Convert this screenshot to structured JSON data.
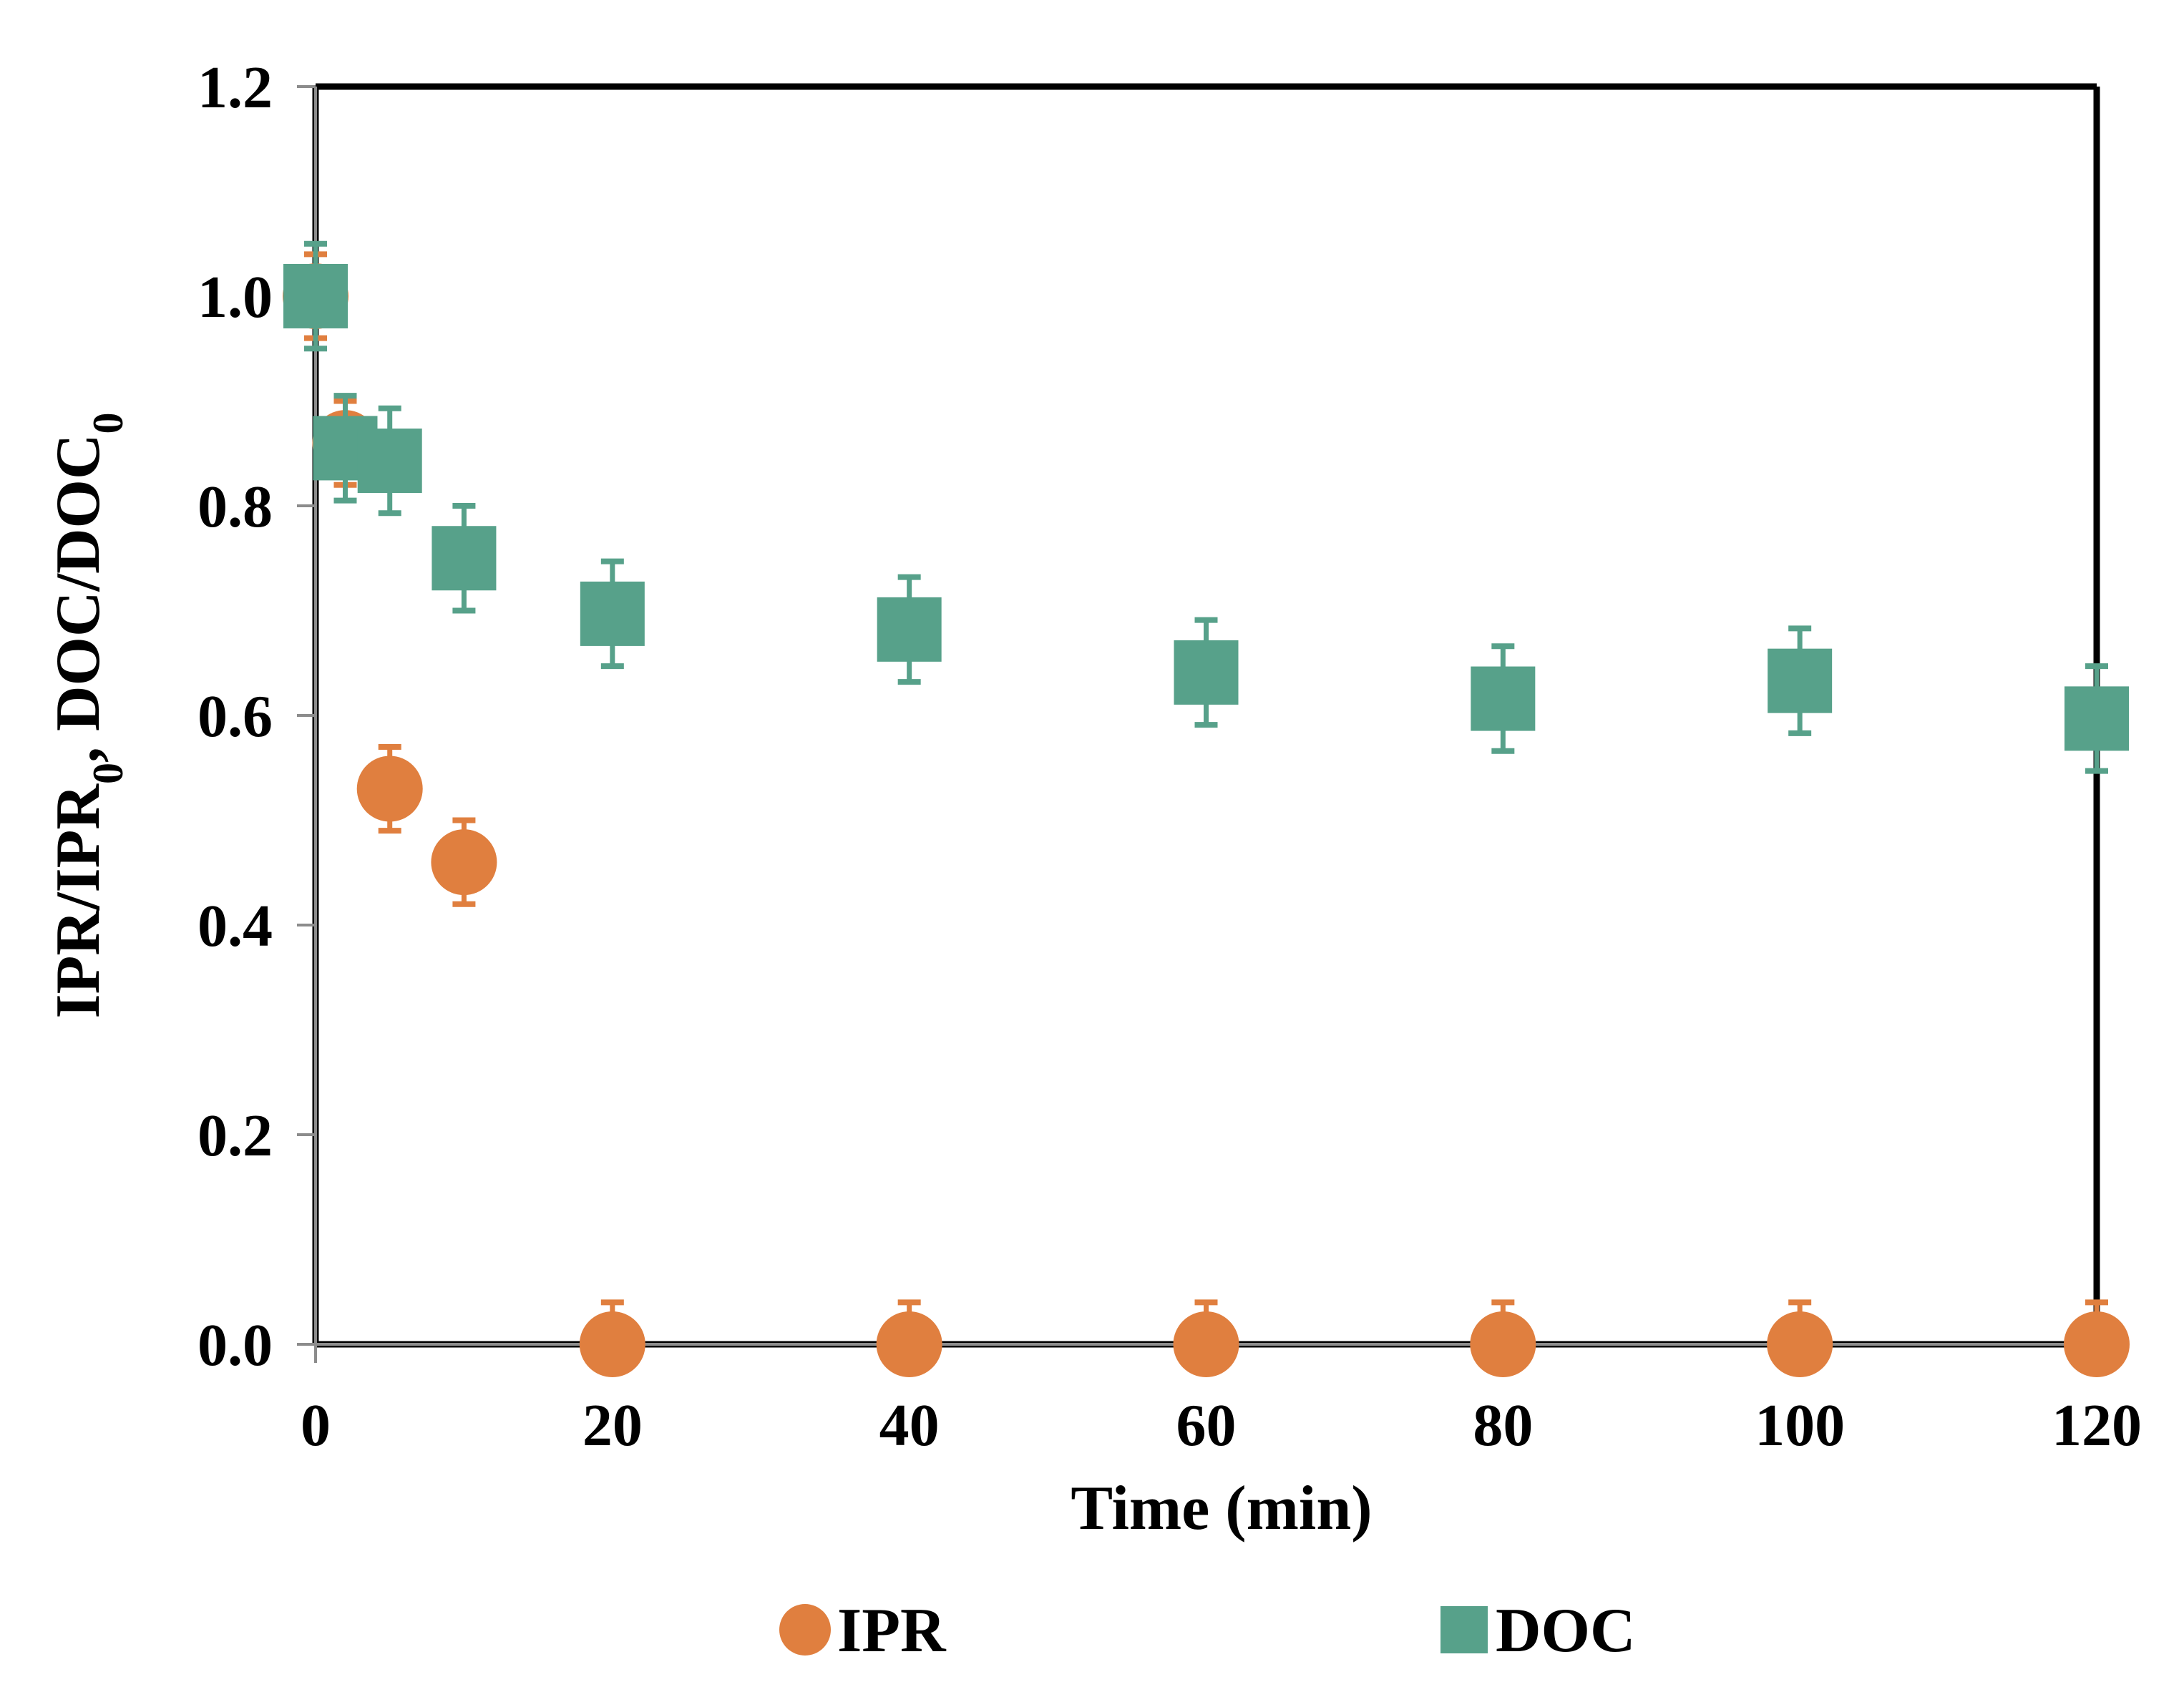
{
  "chart_data": {
    "type": "scatter",
    "title": "",
    "xlabel": "Time (min)",
    "ylabel": {
      "main": "IPR/IPR",
      "sub1": "0",
      "middle": ", DOC/DOC",
      "sub2": "0"
    },
    "xlim": [
      0,
      120
    ],
    "ylim": [
      0,
      1.2
    ],
    "x_ticks": [
      0,
      20,
      40,
      60,
      80,
      100,
      120
    ],
    "x_tick_labels": [
      "0",
      "20",
      "40",
      "60",
      "80",
      "100",
      "120"
    ],
    "y_ticks": [
      0,
      0.2,
      0.4,
      0.6,
      0.8,
      1.0,
      1.2
    ],
    "y_tick_labels": [
      "0.0",
      "0.2",
      "0.4",
      "0.6",
      "0.8",
      "1.0",
      "1.2"
    ],
    "grid": false,
    "legend_position": "bottom",
    "series": [
      {
        "name": "IPR",
        "marker": "circle",
        "color": "#E07F3F",
        "x": [
          0,
          2,
          5,
          10,
          20,
          40,
          60,
          80,
          100,
          120
        ],
        "y": [
          1.0,
          0.86,
          0.53,
          0.46,
          0.0,
          0.0,
          0.0,
          0.0,
          0.0,
          0.0
        ],
        "error": [
          0.04,
          0.04,
          0.04,
          0.04,
          0.04,
          0.04,
          0.04,
          0.04,
          0.04,
          0.04
        ]
      },
      {
        "name": "DOC",
        "marker": "square",
        "color": "#57A18A",
        "x": [
          0,
          2,
          5,
          10,
          20,
          40,
          60,
          80,
          100,
          120
        ],
        "y": [
          1.0,
          0.855,
          0.843,
          0.75,
          0.697,
          0.682,
          0.641,
          0.616,
          0.633,
          0.597
        ],
        "error": [
          0.05,
          0.05,
          0.05,
          0.05,
          0.05,
          0.05,
          0.05,
          0.05,
          0.05,
          0.05
        ]
      }
    ]
  }
}
